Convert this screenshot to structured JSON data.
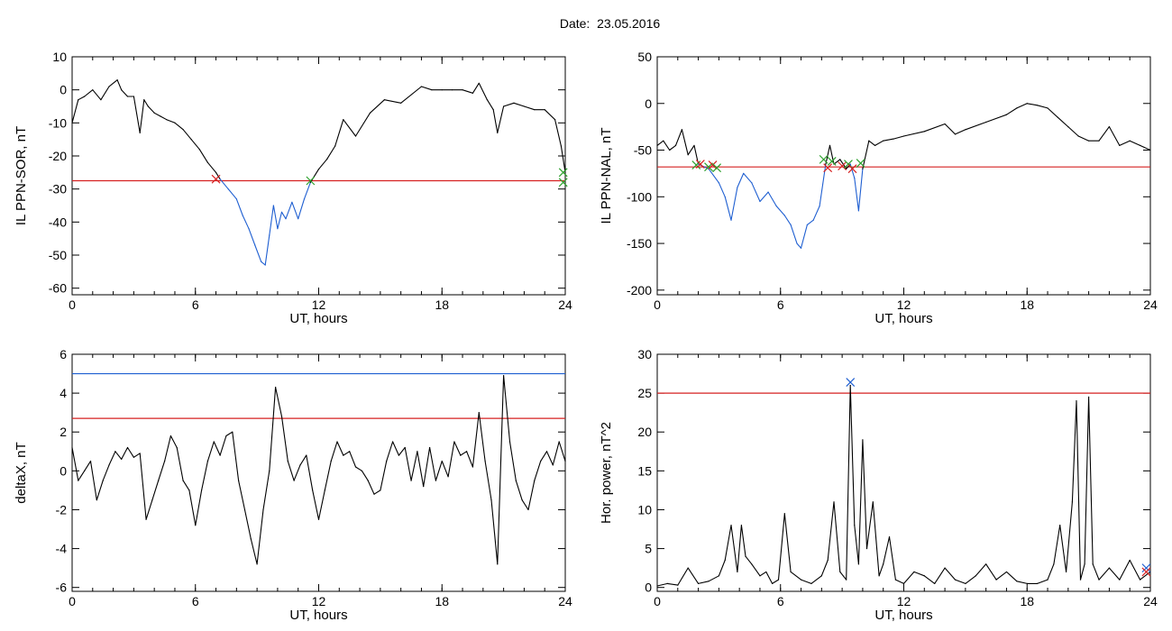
{
  "header": {
    "date_label": "Date:",
    "date_value": "23.05.2016"
  },
  "chart_data": [
    {
      "id": "sor",
      "type": "line",
      "ylabel": "IL PPN-SOR, nT",
      "xlabel": "UT, hours",
      "xlim": [
        0,
        24
      ],
      "ylim": [
        -62,
        10
      ],
      "xticks": [
        0,
        6,
        12,
        18,
        24
      ],
      "yticks": [
        10,
        0,
        -10,
        -20,
        -30,
        -40,
        -50,
        -60
      ],
      "grid": false,
      "series": [
        {
          "color": "#000000",
          "x": [
            0,
            0.3,
            0.6,
            1.0,
            1.4,
            1.8,
            2.2,
            2.4,
            2.7,
            3.0,
            3.3,
            3.5,
            3.7,
            4.0,
            4.3,
            4.6,
            5.0,
            5.4,
            5.8,
            6.2,
            6.6,
            7.0,
            7.2
          ],
          "y": [
            -10,
            -3,
            -2,
            0,
            -3,
            1,
            3,
            0,
            -2,
            -2,
            -13,
            -3,
            -5,
            -7,
            -8,
            -9,
            -10,
            -12,
            -15,
            -18,
            -22,
            -25,
            -27
          ]
        },
        {
          "color": "#1f5fd1",
          "x": [
            7.2,
            7.6,
            8.0,
            8.3,
            8.6,
            8.9,
            9.2,
            9.4,
            9.6,
            9.8,
            10.0,
            10.2,
            10.4,
            10.7,
            11.0,
            11.3,
            11.6
          ],
          "y": [
            -27,
            -30,
            -33,
            -38,
            -42,
            -47,
            -52,
            -53,
            -44,
            -35,
            -42,
            -37,
            -39,
            -34,
            -39,
            -33,
            -28
          ]
        },
        {
          "color": "#000000",
          "x": [
            11.6,
            12.0,
            12.4,
            12.8,
            13.2,
            13.8,
            14.5,
            15.2,
            16.0,
            17.0,
            17.5,
            18.0,
            18.5,
            19.0,
            19.5,
            19.8,
            20.2,
            20.5,
            20.7,
            21.0,
            21.5,
            22.0,
            22.5,
            23.0,
            23.5,
            23.8,
            24.0
          ],
          "y": [
            -28,
            -24,
            -21,
            -17,
            -9,
            -14,
            -7,
            -3,
            -4,
            1,
            0,
            0,
            0,
            0,
            -1,
            2,
            -3,
            -6,
            -13,
            -5,
            -4,
            -5,
            -6,
            -6,
            -9,
            -17,
            -25
          ]
        }
      ],
      "threshold_lines": [
        {
          "y": -27.5,
          "color": "#d62020"
        }
      ],
      "markers": [
        {
          "x": 7.0,
          "y": -27,
          "color": "#d62020"
        },
        {
          "x": 11.6,
          "y": -27.5,
          "color": "#2ca02c"
        },
        {
          "x": 23.9,
          "y": -25,
          "color": "#2ca02c"
        },
        {
          "x": 23.9,
          "y": -28,
          "color": "#2ca02c"
        }
      ]
    },
    {
      "id": "nal",
      "type": "line",
      "ylabel": "IL PPN-NAL, nT",
      "xlabel": "UT, hours",
      "xlim": [
        0,
        24
      ],
      "ylim": [
        -205,
        50
      ],
      "xticks": [
        0,
        6,
        12,
        18,
        24
      ],
      "yticks": [
        50,
        0,
        -50,
        -100,
        -150,
        -200
      ],
      "grid": false,
      "series": [
        {
          "color": "#000000",
          "x": [
            0,
            0.3,
            0.6,
            0.9,
            1.2,
            1.5,
            1.8,
            2.0
          ],
          "y": [
            -45,
            -40,
            -50,
            -45,
            -28,
            -55,
            -45,
            -65
          ]
        },
        {
          "color": "#1f5fd1",
          "x": [
            2.0,
            2.5,
            3.0,
            3.3,
            3.6,
            3.9,
            4.2,
            4.6,
            5.0,
            5.4,
            5.8,
            6.2,
            6.5,
            6.8,
            7.0,
            7.3,
            7.6,
            7.9,
            8.2
          ],
          "y": [
            -65,
            -70,
            -85,
            -100,
            -125,
            -90,
            -75,
            -85,
            -105,
            -95,
            -110,
            -120,
            -130,
            -150,
            -155,
            -130,
            -125,
            -110,
            -65
          ]
        },
        {
          "color": "#000000",
          "x": [
            8.2,
            8.4,
            8.6,
            8.9,
            9.2,
            9.4
          ],
          "y": [
            -65,
            -45,
            -65,
            -60,
            -70,
            -65
          ]
        },
        {
          "color": "#1f5fd1",
          "x": [
            9.4,
            9.6,
            9.8,
            10.0
          ],
          "y": [
            -65,
            -80,
            -115,
            -70
          ]
        },
        {
          "color": "#000000",
          "x": [
            10.0,
            10.3,
            10.6,
            11.0,
            11.5,
            12.0,
            13.0,
            14.0,
            14.5,
            15.0,
            16.0,
            17.0,
            17.5,
            18.0,
            18.5,
            19.0,
            19.5,
            20.0,
            20.5,
            21.0,
            21.5,
            22.0,
            22.5,
            23.0,
            23.5,
            24.0
          ],
          "y": [
            -70,
            -40,
            -45,
            -40,
            -38,
            -35,
            -30,
            -22,
            -33,
            -28,
            -20,
            -12,
            -5,
            0,
            -2,
            -5,
            -15,
            -25,
            -35,
            -40,
            -40,
            -25,
            -45,
            -40,
            -45,
            -50
          ]
        }
      ],
      "threshold_lines": [
        {
          "y": -68,
          "color": "#d62020"
        }
      ],
      "markers": [
        {
          "x": 1.9,
          "y": -66,
          "color": "#2ca02c"
        },
        {
          "x": 2.1,
          "y": -65,
          "color": "#d62020"
        },
        {
          "x": 2.5,
          "y": -68,
          "color": "#2ca02c"
        },
        {
          "x": 2.7,
          "y": -66,
          "color": "#d62020"
        },
        {
          "x": 2.9,
          "y": -69,
          "color": "#2ca02c"
        },
        {
          "x": 8.1,
          "y": -60,
          "color": "#2ca02c"
        },
        {
          "x": 8.3,
          "y": -69,
          "color": "#d62020"
        },
        {
          "x": 8.5,
          "y": -62,
          "color": "#2ca02c"
        },
        {
          "x": 9.0,
          "y": -67,
          "color": "#d62020"
        },
        {
          "x": 9.3,
          "y": -65,
          "color": "#2ca02c"
        },
        {
          "x": 9.5,
          "y": -70,
          "color": "#d62020"
        },
        {
          "x": 9.9,
          "y": -64,
          "color": "#2ca02c"
        }
      ]
    },
    {
      "id": "deltax",
      "type": "line",
      "ylabel": "deltaX, nT",
      "xlabel": "UT, hours",
      "xlim": [
        0,
        24
      ],
      "ylim": [
        -6.2,
        6
      ],
      "xticks": [
        0,
        6,
        12,
        18,
        24
      ],
      "yticks": [
        6,
        4,
        2,
        0,
        -2,
        -4,
        -6
      ],
      "grid": false,
      "series": [
        {
          "color": "#000000",
          "x": [
            0,
            0.3,
            0.6,
            0.9,
            1.2,
            1.5,
            1.8,
            2.1,
            2.4,
            2.7,
            3.0,
            3.3,
            3.6,
            3.9,
            4.2,
            4.5,
            4.8,
            5.1,
            5.4,
            5.7,
            6.0,
            6.3,
            6.6,
            6.9,
            7.2,
            7.5,
            7.8,
            8.1,
            8.4,
            8.7,
            9.0,
            9.3,
            9.6,
            9.9,
            10.2,
            10.5,
            10.8,
            11.1,
            11.4,
            11.7,
            12.0,
            12.3,
            12.6,
            12.9,
            13.2,
            13.5,
            13.8,
            14.1,
            14.4,
            14.7,
            15.0,
            15.3,
            15.6,
            15.9,
            16.2,
            16.5,
            16.8,
            17.1,
            17.4,
            17.7,
            18.0,
            18.3,
            18.6,
            18.9,
            19.2,
            19.5,
            19.8,
            20.1,
            20.4,
            20.7,
            21.0,
            21.3,
            21.6,
            21.9,
            22.2,
            22.5,
            22.8,
            23.1,
            23.4,
            23.7,
            24.0
          ],
          "y": [
            1.2,
            -0.5,
            0,
            0.5,
            -1.5,
            -0.5,
            0.3,
            1.0,
            0.6,
            1.2,
            0.7,
            0.9,
            -2.5,
            -1.5,
            -0.5,
            0.5,
            1.8,
            1.2,
            -0.5,
            -1.0,
            -2.8,
            -1.0,
            0.5,
            1.5,
            0.8,
            1.8,
            2.0,
            -0.5,
            -2.0,
            -3.5,
            -4.8,
            -2.0,
            0.0,
            4.3,
            2.8,
            0.5,
            -0.5,
            0.3,
            0.8,
            -1.0,
            -2.5,
            -1.0,
            0.5,
            1.5,
            0.8,
            1.0,
            0.2,
            0.0,
            -0.5,
            -1.2,
            -1.0,
            0.5,
            1.5,
            0.8,
            1.2,
            -0.5,
            1.0,
            -0.8,
            1.2,
            -0.5,
            0.5,
            -0.3,
            1.5,
            0.8,
            1.0,
            0.2,
            3.0,
            0.5,
            -1.5,
            -4.8,
            4.9,
            1.5,
            -0.5,
            -1.5,
            -2.0,
            -0.5,
            0.5,
            1.0,
            0.3,
            1.5,
            0.5
          ]
        }
      ],
      "threshold_lines": [
        {
          "y": 5.0,
          "color": "#1f5fd1"
        },
        {
          "y": 2.7,
          "color": "#d62020"
        }
      ],
      "markers": []
    },
    {
      "id": "power",
      "type": "line",
      "ylabel": "Hor. power, nT^2",
      "xlabel": "UT, hours",
      "xlim": [
        0,
        24
      ],
      "ylim": [
        -0.5,
        30
      ],
      "xticks": [
        0,
        6,
        12,
        18,
        24
      ],
      "yticks": [
        30,
        25,
        20,
        15,
        10,
        5,
        0
      ],
      "grid": false,
      "series": [
        {
          "color": "#000000",
          "x": [
            0,
            0.5,
            1.0,
            1.5,
            2.0,
            2.5,
            3.0,
            3.3,
            3.6,
            3.9,
            4.1,
            4.3,
            4.6,
            5.0,
            5.3,
            5.6,
            5.9,
            6.2,
            6.5,
            7.0,
            7.5,
            8.0,
            8.3,
            8.6,
            8.9,
            9.2,
            9.4,
            9.6,
            9.8,
            10.0,
            10.2,
            10.5,
            10.8,
            11.0,
            11.3,
            11.6,
            12.0,
            12.5,
            13.0,
            13.5,
            14.0,
            14.5,
            15.0,
            15.5,
            16.0,
            16.5,
            17.0,
            17.5,
            18.0,
            18.5,
            19.0,
            19.3,
            19.6,
            19.9,
            20.2,
            20.4,
            20.6,
            20.8,
            21.0,
            21.2,
            21.5,
            22.0,
            22.5,
            23.0,
            23.5,
            24.0
          ],
          "y": [
            0.2,
            0.5,
            0.3,
            2.5,
            0.5,
            0.8,
            1.5,
            3.5,
            8.0,
            2.0,
            8.0,
            4.0,
            3.0,
            1.5,
            2.0,
            0.5,
            1.0,
            9.5,
            2.0,
            1.0,
            0.5,
            1.5,
            3.5,
            11.0,
            2.0,
            1.0,
            26.0,
            8.0,
            3.0,
            19.0,
            5.0,
            11.0,
            1.5,
            3.0,
            6.5,
            1.0,
            0.5,
            2.0,
            1.5,
            0.5,
            2.5,
            1.0,
            0.5,
            1.5,
            3.0,
            1.0,
            2.0,
            0.8,
            0.5,
            0.5,
            1.0,
            3.0,
            8.0,
            2.0,
            11.0,
            24.0,
            1.0,
            3.0,
            24.5,
            3.0,
            1.0,
            2.5,
            1.0,
            3.5,
            1.0,
            2.0
          ]
        }
      ],
      "threshold_lines": [
        {
          "y": 25.0,
          "color": "#d62020"
        }
      ],
      "markers": [
        {
          "x": 9.4,
          "y": 26.4,
          "color": "#1f5fd1"
        },
        {
          "x": 23.8,
          "y": 2.5,
          "color": "#1f5fd1"
        },
        {
          "x": 23.8,
          "y": 2.0,
          "color": "#d62020"
        }
      ]
    }
  ]
}
